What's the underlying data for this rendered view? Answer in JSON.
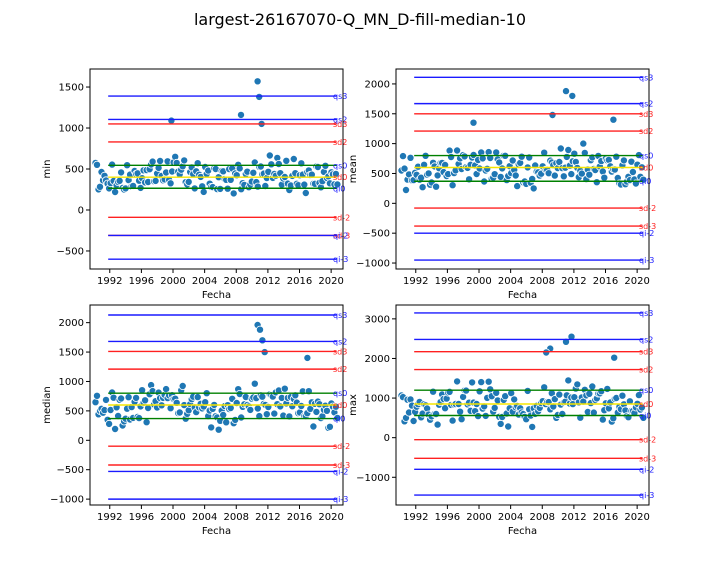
{
  "figure": {
    "title": "largest-26167070-Q_MN_D-fill-median-10"
  },
  "colors": {
    "points": "#1f77b4",
    "point_edge": "#ffffff",
    "q_lines": "#1a1aff",
    "sd_lines": "#ff2020",
    "zero_line": "#008000",
    "mean_line": "#f5e600"
  },
  "chart_data": [
    {
      "type": "scatter",
      "ylabel": "min",
      "xlabel": "Fecha",
      "xlim": [
        1989.5,
        2021.5
      ],
      "ylim": [
        -720,
        1720
      ],
      "xticks": [
        "1992",
        "1996",
        "2000",
        "2004",
        "2008",
        "2012",
        "2016",
        "2020"
      ],
      "yticks": [
        -500,
        0,
        500,
        1000,
        1500
      ],
      "hlines": [
        {
          "label": "qs3",
          "value": 1390,
          "kind": "q"
        },
        {
          "label": "qs2",
          "value": 1105,
          "kind": "q"
        },
        {
          "label": "sd3",
          "value": 1050,
          "kind": "sd"
        },
        {
          "label": "sd2",
          "value": 830,
          "kind": "sd"
        },
        {
          "label": "qs0",
          "value": 545,
          "kind": "zero"
        },
        {
          "label": "sd0",
          "value": 400,
          "kind": "mean"
        },
        {
          "label": "qi0",
          "value": 265,
          "kind": "zero"
        },
        {
          "label": "sd-2",
          "value": -90,
          "kind": "sd"
        },
        {
          "label": "sd-3",
          "value": -310,
          "kind": "sd"
        },
        {
          "label": "qi-2",
          "value": -310,
          "kind": "q"
        },
        {
          "label": "qi-3",
          "value": -600,
          "kind": "q"
        }
      ],
      "points": {
        "center": 420,
        "spread": 150,
        "peaks": [
          [
            1999.8,
            1090
          ],
          [
            2008.6,
            1160
          ],
          [
            2010.7,
            1570
          ],
          [
            2010.9,
            1380
          ],
          [
            2011.2,
            1050
          ]
        ]
      }
    },
    {
      "type": "scatter",
      "ylabel": "mean",
      "xlabel": "Fecha",
      "xlim": [
        1989.5,
        2021.5
      ],
      "ylim": [
        -1100,
        2250
      ],
      "xticks": [
        "1992",
        "1996",
        "2000",
        "2004",
        "2008",
        "2012",
        "2016",
        "2020"
      ],
      "yticks": [
        -1000,
        -500,
        0,
        500,
        1000,
        1500,
        2000
      ],
      "hlines": [
        {
          "label": "qs3",
          "value": 2110,
          "kind": "q"
        },
        {
          "label": "qs2",
          "value": 1670,
          "kind": "q"
        },
        {
          "label": "sd3",
          "value": 1500,
          "kind": "sd"
        },
        {
          "label": "sd2",
          "value": 1210,
          "kind": "sd"
        },
        {
          "label": "qs0",
          "value": 800,
          "kind": "zero"
        },
        {
          "label": "sd0",
          "value": 600,
          "kind": "mean"
        },
        {
          "label": "qi0",
          "value": 370,
          "kind": "zero"
        },
        {
          "label": "sd-2",
          "value": -80,
          "kind": "sd"
        },
        {
          "label": "sd-3",
          "value": -380,
          "kind": "sd"
        },
        {
          "label": "qi-2",
          "value": -500,
          "kind": "q"
        },
        {
          "label": "qi-3",
          "value": -950,
          "kind": "q"
        }
      ],
      "points": {
        "center": 600,
        "spread": 260,
        "peaks": [
          [
            2011.0,
            1880
          ],
          [
            2011.8,
            1800
          ],
          [
            2009.3,
            1480
          ],
          [
            2017.0,
            1400
          ],
          [
            1999.3,
            1350
          ]
        ]
      }
    },
    {
      "type": "scatter",
      "ylabel": "median",
      "xlabel": "Fecha",
      "xlim": [
        1989.5,
        2021.5
      ],
      "ylim": [
        -1100,
        2300
      ],
      "xticks": [
        "1992",
        "1996",
        "2000",
        "2004",
        "2008",
        "2012",
        "2016",
        "2020"
      ],
      "yticks": [
        -1000,
        -500,
        0,
        500,
        1000,
        1500,
        2000
      ],
      "hlines": [
        {
          "label": "qs3",
          "value": 2130,
          "kind": "q"
        },
        {
          "label": "qs2",
          "value": 1680,
          "kind": "q"
        },
        {
          "label": "sd3",
          "value": 1510,
          "kind": "sd"
        },
        {
          "label": "sd2",
          "value": 1210,
          "kind": "sd"
        },
        {
          "label": "qs0",
          "value": 800,
          "kind": "zero"
        },
        {
          "label": "sd0",
          "value": 600,
          "kind": "mean"
        },
        {
          "label": "qi0",
          "value": 370,
          "kind": "zero"
        },
        {
          "label": "sd-2",
          "value": -100,
          "kind": "sd"
        },
        {
          "label": "sd-3",
          "value": -420,
          "kind": "sd"
        },
        {
          "label": "qi-2",
          "value": -530,
          "kind": "q"
        },
        {
          "label": "qi-3",
          "value": -1000,
          "kind": "q"
        }
      ],
      "points": {
        "center": 600,
        "spread": 260,
        "peaks": [
          [
            2010.7,
            1960
          ],
          [
            2011.0,
            1880
          ],
          [
            2011.3,
            1700
          ],
          [
            2011.6,
            1500
          ],
          [
            2017.0,
            1400
          ]
        ]
      }
    },
    {
      "type": "scatter",
      "ylabel": "max",
      "xlabel": "Fecha",
      "xlim": [
        1989.5,
        2021.5
      ],
      "ylim": [
        -1700,
        3350
      ],
      "xticks": [
        "1992",
        "1996",
        "2000",
        "2004",
        "2008",
        "2012",
        "2016",
        "2020"
      ],
      "yticks": [
        -1000,
        0,
        1000,
        2000,
        3000
      ],
      "hlines": [
        {
          "label": "qs3",
          "value": 3150,
          "kind": "q"
        },
        {
          "label": "qs2",
          "value": 2480,
          "kind": "q"
        },
        {
          "label": "sd3",
          "value": 2170,
          "kind": "sd"
        },
        {
          "label": "sd2",
          "value": 1720,
          "kind": "sd"
        },
        {
          "label": "qs0",
          "value": 1200,
          "kind": "zero"
        },
        {
          "label": "sd0",
          "value": 850,
          "kind": "mean"
        },
        {
          "label": "qi0",
          "value": 560,
          "kind": "zero"
        },
        {
          "label": "sd-2",
          "value": -50,
          "kind": "sd"
        },
        {
          "label": "sd-3",
          "value": -520,
          "kind": "sd"
        },
        {
          "label": "qi-2",
          "value": -800,
          "kind": "q"
        },
        {
          "label": "qi-3",
          "value": -1450,
          "kind": "q"
        }
      ],
      "points": {
        "center": 850,
        "spread": 380,
        "peaks": [
          [
            2011.7,
            2550
          ],
          [
            2011.0,
            2420
          ],
          [
            2009.0,
            2250
          ],
          [
            2008.5,
            2150
          ],
          [
            2017.1,
            2020
          ]
        ]
      }
    }
  ]
}
